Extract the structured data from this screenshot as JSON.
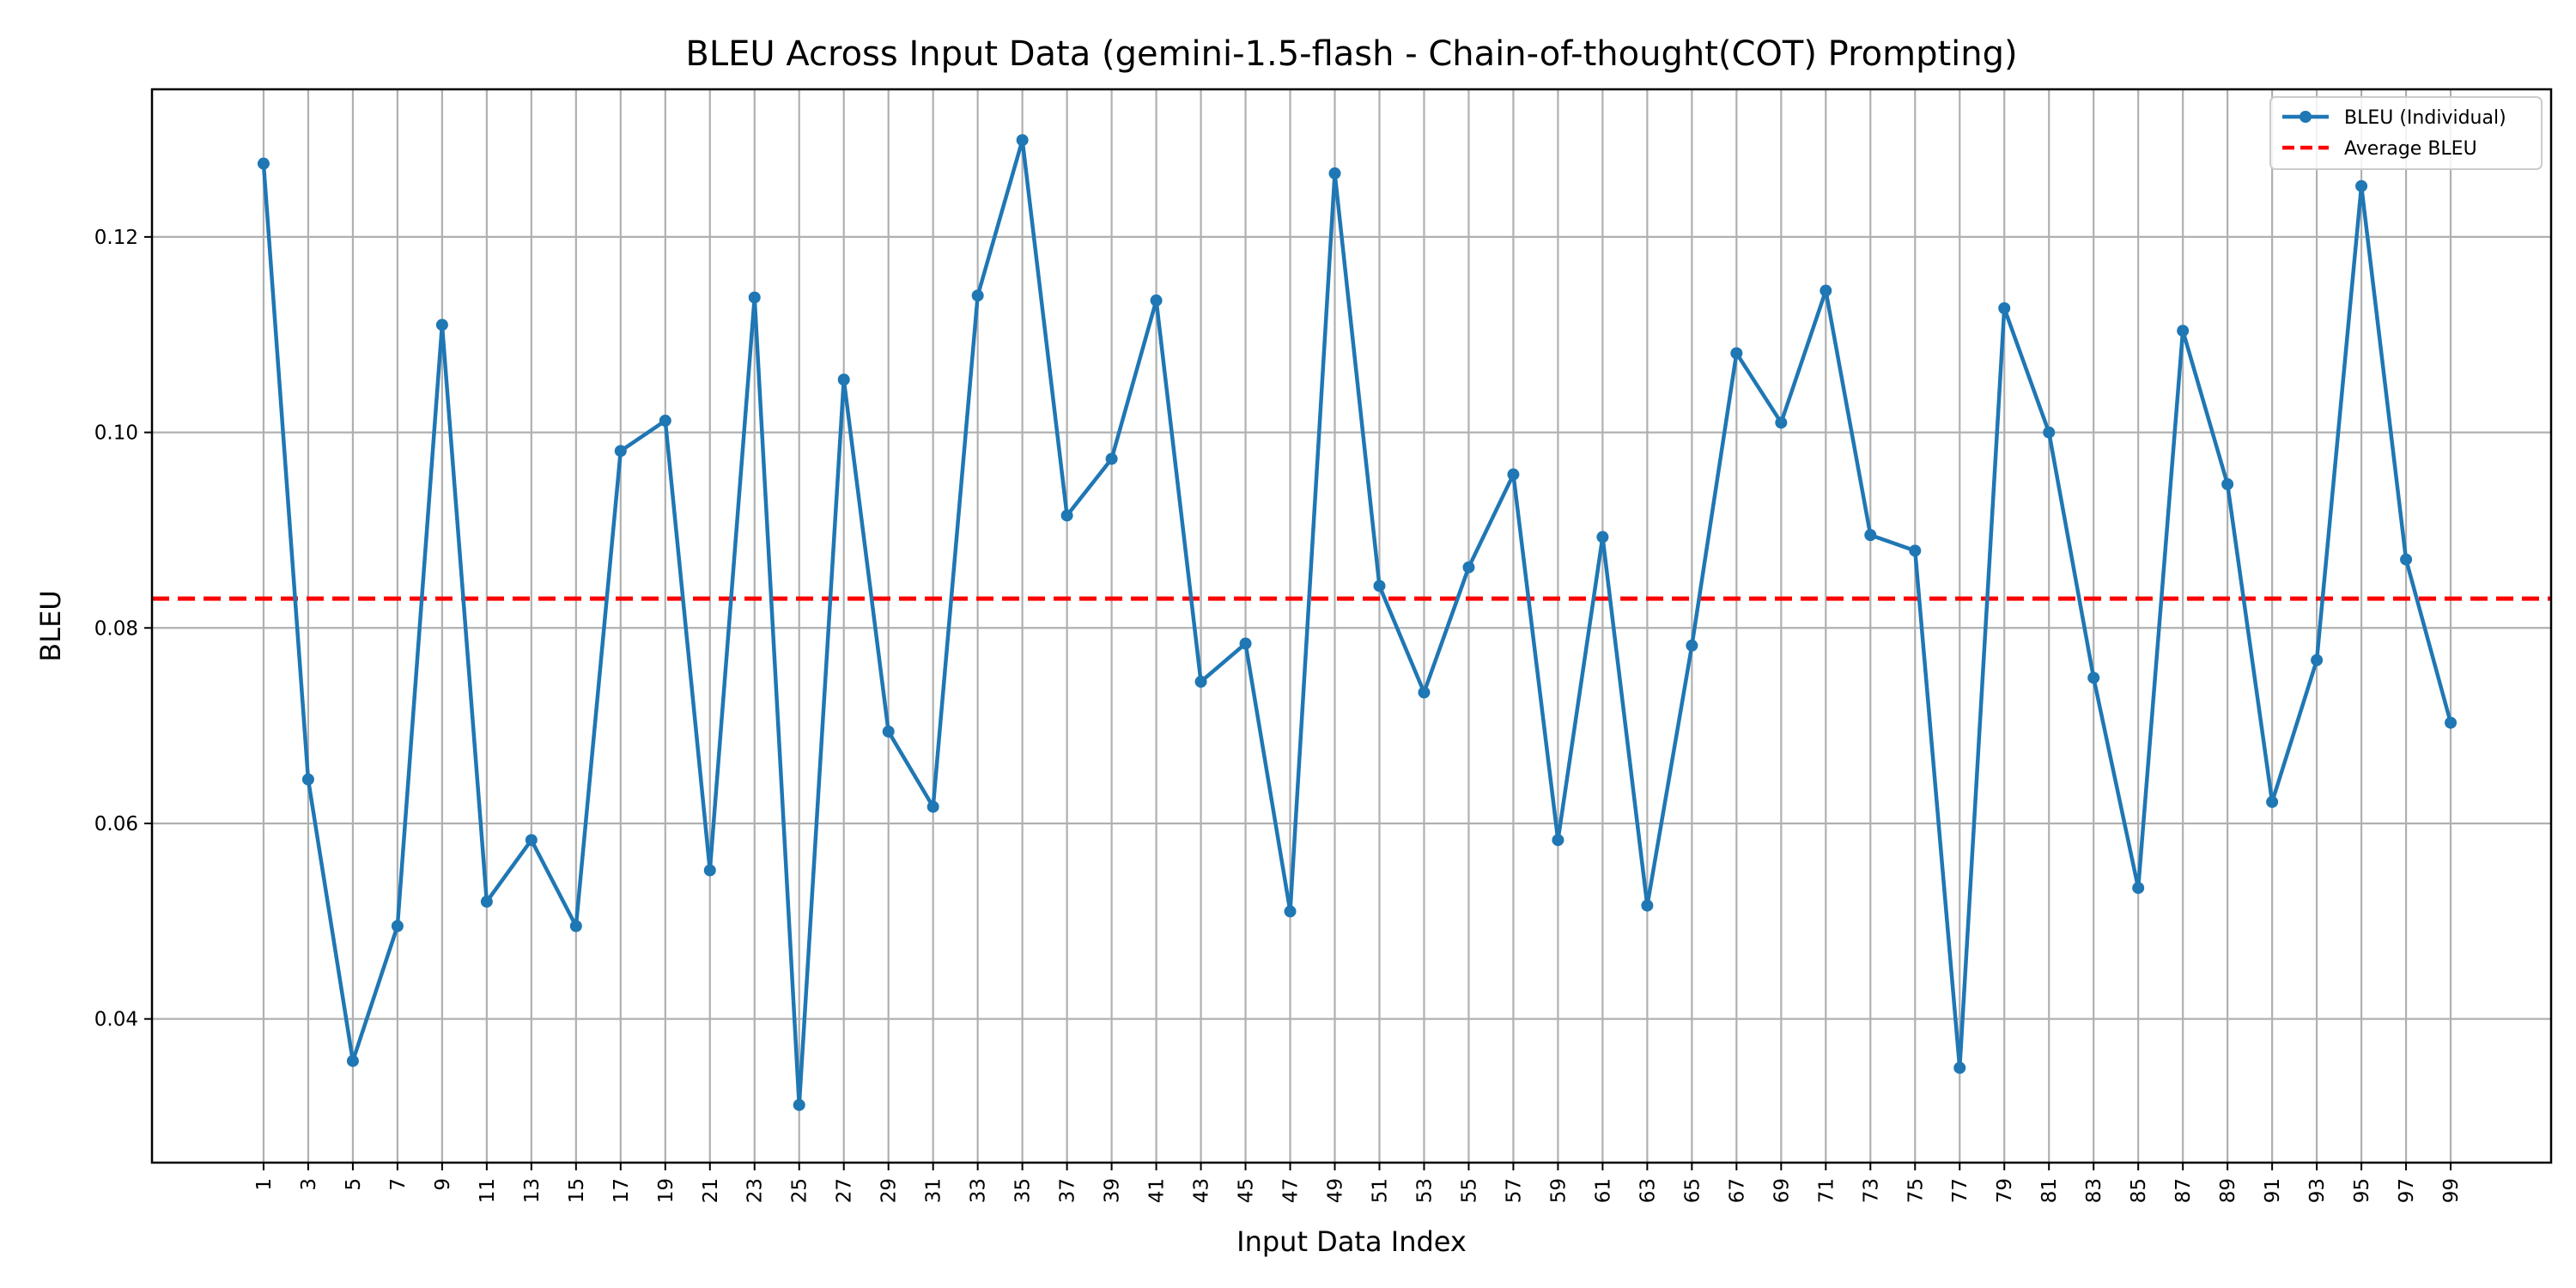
{
  "chart_data": {
    "type": "line",
    "title": "BLEU Across Input Data (gemini-1.5-flash - Chain-of-thought(COT) Prompting)",
    "xlabel": "Input Data Index",
    "ylabel": "BLEU",
    "x": [
      1,
      3,
      5,
      7,
      9,
      11,
      13,
      15,
      17,
      19,
      21,
      23,
      25,
      27,
      29,
      31,
      33,
      35,
      37,
      39,
      41,
      43,
      45,
      47,
      49,
      51,
      53,
      55,
      57,
      59,
      61,
      63,
      65,
      67,
      69,
      71,
      73,
      75,
      77,
      79,
      81,
      83,
      85,
      87,
      89,
      91,
      93,
      95,
      97,
      99
    ],
    "xlim": [
      -4.0,
      103.5
    ],
    "ylim": [
      0.0253,
      0.1351
    ],
    "yticks": [
      0.04,
      0.06,
      0.08,
      0.1,
      0.12
    ],
    "ytick_labels": [
      "0.04",
      "0.06",
      "0.08",
      "0.10",
      "0.12"
    ],
    "grid": true,
    "legend_position": "top-right",
    "series": [
      {
        "name": "BLEU (Individual)",
        "color": "#1f77b4",
        "style": "solid-with-markers",
        "values": [
          0.1275,
          0.0645,
          0.0357,
          0.0495,
          0.111,
          0.052,
          0.0583,
          0.0495,
          0.0981,
          0.1012,
          0.0552,
          0.1138,
          0.0312,
          0.1054,
          0.0694,
          0.0617,
          0.114,
          0.1299,
          0.0915,
          0.0973,
          0.1135,
          0.0745,
          0.0784,
          0.051,
          0.1265,
          0.0843,
          0.0734,
          0.0862,
          0.0957,
          0.0583,
          0.0893,
          0.0516,
          0.0782,
          0.1081,
          0.101,
          0.1145,
          0.0895,
          0.0879,
          0.035,
          0.1127,
          0.1,
          0.0749,
          0.0534,
          0.1104,
          0.0947,
          0.0622,
          0.0767,
          0.1252,
          0.087,
          0.0703
        ]
      },
      {
        "name": "Average BLEU",
        "color": "#ff0000",
        "style": "dashed",
        "value": 0.083
      }
    ]
  }
}
